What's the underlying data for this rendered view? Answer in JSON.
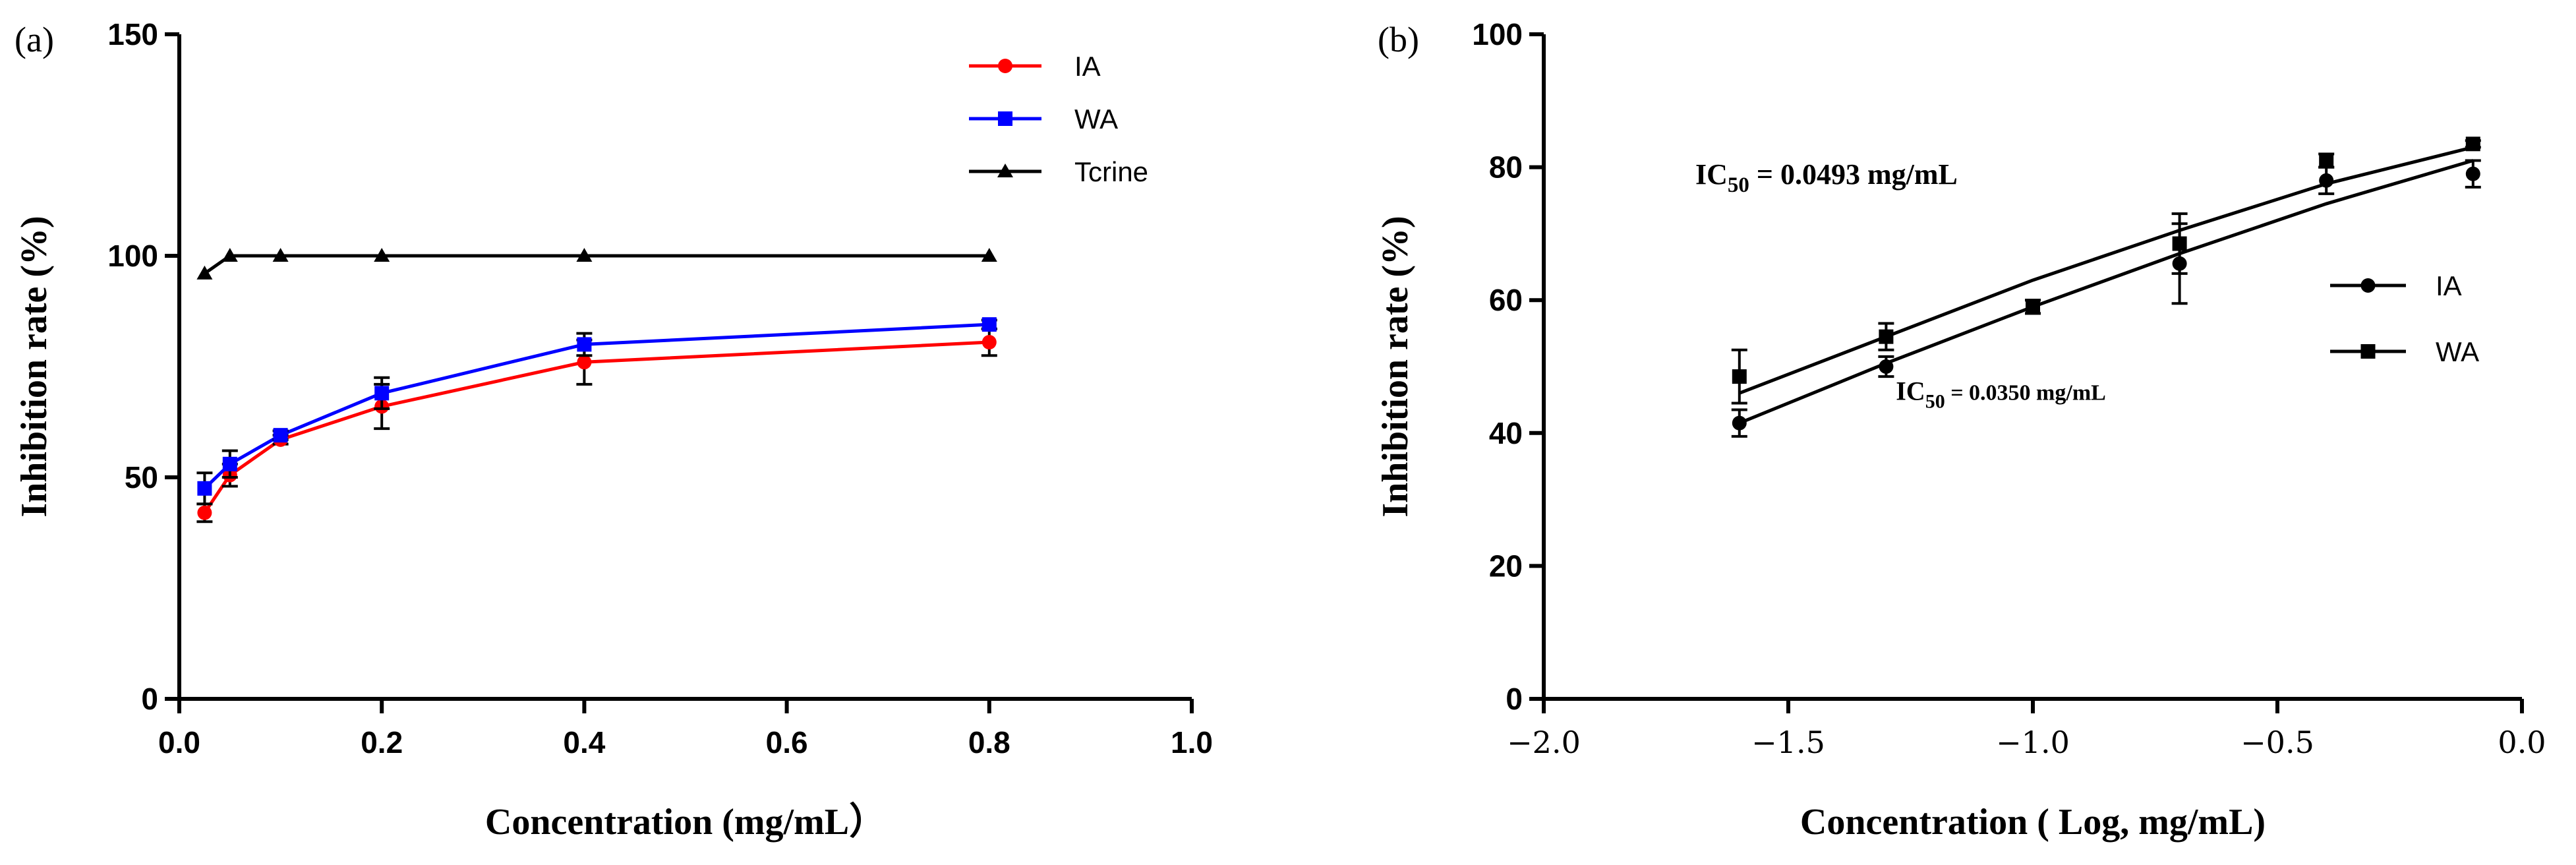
{
  "chart_data": [
    {
      "type": "line",
      "panel_label": "(a)",
      "xlabel": "Concentration (mg/mL）",
      "ylabel": "Inhibition rate (%)",
      "xlim": [
        0.0,
        1.0
      ],
      "ylim": [
        0,
        150
      ],
      "xticks": [
        0.0,
        0.2,
        0.4,
        0.6,
        0.8,
        1.0
      ],
      "xtick_labels": [
        "0.0",
        "0.2",
        "0.4",
        "0.6",
        "0.8",
        "1.0"
      ],
      "yticks": [
        0,
        50,
        100,
        150
      ],
      "ytick_labels": [
        "0",
        "50",
        "100",
        "150"
      ],
      "legend_position": "top-right",
      "series": [
        {
          "name": "IA",
          "color": "#ff0000",
          "marker": "circle",
          "x": [
            0.025,
            0.05,
            0.1,
            0.2,
            0.4,
            0.8
          ],
          "y": [
            42,
            50.5,
            58.5,
            66,
            76,
            80.5
          ],
          "err": [
            2,
            2.5,
            1,
            5,
            5,
            3
          ]
        },
        {
          "name": "WA",
          "color": "#0000ff",
          "marker": "square",
          "x": [
            0.025,
            0.05,
            0.1,
            0.2,
            0.4,
            0.8
          ],
          "y": [
            47.5,
            53,
            59.5,
            69,
            80,
            84.5
          ],
          "err": [
            3.5,
            3,
            1,
            3.5,
            2.5,
            1
          ]
        },
        {
          "name": "Tcrine",
          "color": "#000000",
          "marker": "triangle",
          "x": [
            0.025,
            0.05,
            0.1,
            0.2,
            0.4,
            0.8
          ],
          "y": [
            96,
            100,
            100,
            100,
            100,
            100
          ],
          "err": [
            0,
            0,
            0,
            0,
            0,
            0
          ]
        }
      ]
    },
    {
      "type": "scatter",
      "panel_label": "(b)",
      "xlabel": "Concentration ( Log, mg/mL)",
      "ylabel": "Inhibition rate (%)",
      "xlim": [
        -2.0,
        0.0
      ],
      "ylim": [
        0,
        100
      ],
      "xticks": [
        -2.0,
        -1.5,
        -1.0,
        -0.5,
        0.0
      ],
      "xtick_labels": [
        "−2.0",
        "−1.5",
        "−1.0",
        "−0.5",
        "0.0"
      ],
      "yticks": [
        0,
        20,
        40,
        60,
        80,
        100
      ],
      "ytick_labels": [
        "0",
        "20",
        "40",
        "60",
        "80",
        "100"
      ],
      "legend_position": "center-right",
      "series": [
        {
          "name": "IA",
          "color": "#000000",
          "marker": "circle",
          "x": [
            -1.6,
            -1.3,
            -1.0,
            -0.7,
            -0.4,
            -0.1
          ],
          "y": [
            41.5,
            50,
            59,
            65.5,
            78,
            79
          ],
          "err": [
            2,
            1.5,
            1,
            6,
            2,
            2
          ],
          "fit_y": [
            41.5,
            50.5,
            59,
            67,
            74.5,
            81
          ]
        },
        {
          "name": "WA",
          "color": "#000000",
          "marker": "square",
          "x": [
            -1.6,
            -1.3,
            -1.0,
            -0.7,
            -0.4,
            -0.1
          ],
          "y": [
            48.5,
            54.5,
            59,
            68.5,
            81,
            83.5
          ],
          "err": [
            4,
            2,
            1,
            4.5,
            1,
            0.5
          ],
          "fit_y": [
            46,
            54.5,
            63,
            70.5,
            77.5,
            83
          ]
        }
      ],
      "annotations": [
        {
          "prefix": "IC",
          "sub": "50",
          "suffix": " = 0.0493 mg/mL",
          "at": [
            -1.69,
            77.5
          ]
        },
        {
          "prefix": "IC",
          "sub": "50",
          "suffix": " = 0.0350 mg/mL",
          "at": [
            -1.28,
            45
          ]
        }
      ]
    }
  ]
}
